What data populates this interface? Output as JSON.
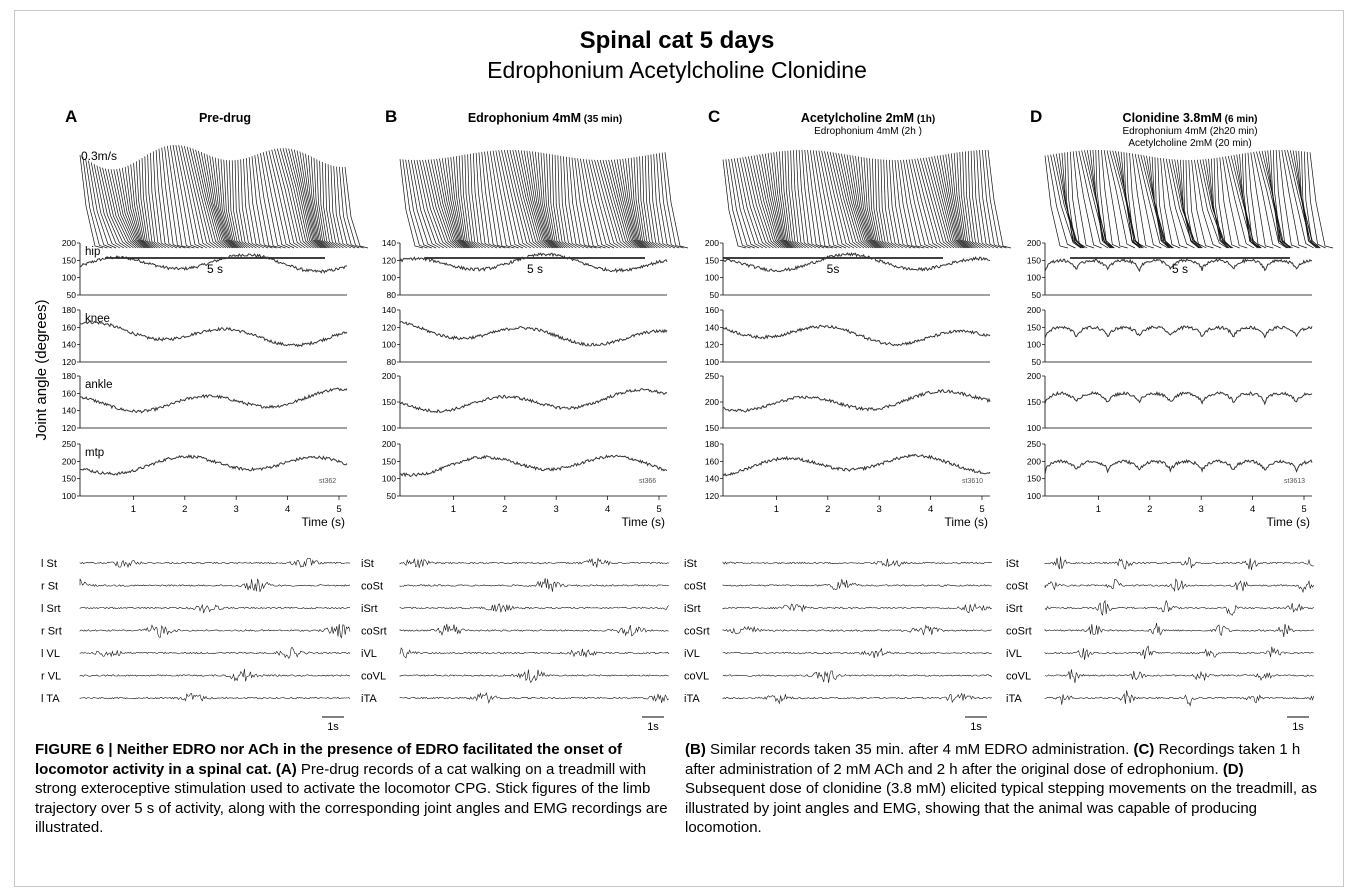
{
  "figure": {
    "title": "Spinal cat 5 days",
    "subtitle": "Edrophonium Acetylcholine Clonidine",
    "y_axis_label": "Joint angle (degrees)",
    "panels": [
      {
        "letter": "A",
        "title": "Pre-drug",
        "title_suffix": "",
        "subnotes": [],
        "speed_label": "0.3m/s",
        "stick_duration_label": "5 s",
        "record_id": "st362",
        "channels": [
          "l St",
          "r St",
          "l Srt",
          "r Srt",
          "l VL",
          "r VL",
          "l TA"
        ]
      },
      {
        "letter": "B",
        "title": "Edrophonium 4mM",
        "title_suffix": " (35 min)",
        "subnotes": [],
        "speed_label": "",
        "stick_duration_label": "5 s",
        "record_id": "st366",
        "channels": [
          "iSt",
          "coSt",
          "iSrt",
          "coSrt",
          "iVL",
          "coVL",
          "iTA"
        ]
      },
      {
        "letter": "C",
        "title": "Acetylcholine 2mM",
        "title_suffix": " (1h)",
        "subnotes": [
          "Edrophonium 4mM (2h )"
        ],
        "speed_label": "",
        "stick_duration_label": "5s",
        "record_id": "st3610",
        "channels": [
          "iSt",
          "coSt",
          "iSrt",
          "coSrt",
          "iVL",
          "coVL",
          "iTA"
        ]
      },
      {
        "letter": "D",
        "title": "Clonidine 3.8mM",
        "title_suffix": " (6 min)",
        "subnotes": [
          "Edrophonium 4mM (2h20 min)",
          "Acetylcholine  2mM (20 min)"
        ],
        "speed_label": "",
        "stick_duration_label": "5 s",
        "record_id": "st3613",
        "channels": [
          "iSt",
          "coSt",
          "iSrt",
          "coSrt",
          "iVL",
          "coVL",
          "iTA"
        ]
      }
    ],
    "joint_plots": [
      {
        "joint_labels": [
          "hip",
          "knee",
          "ankle",
          "mtp"
        ],
        "y_ticks": [
          [
            "200",
            "150",
            "100",
            "50"
          ],
          [
            "180",
            "160",
            "140",
            "120"
          ],
          [
            "180",
            "160",
            "140",
            "120"
          ],
          [
            "250",
            "200",
            "150",
            "100"
          ]
        ]
      },
      {
        "joint_labels": [],
        "y_ticks": [
          [
            "140",
            "120",
            "100",
            "80"
          ],
          [
            "140",
            "120",
            "100",
            "80"
          ],
          [
            "200",
            "150",
            "100"
          ],
          [
            "200",
            "150",
            "100",
            "50"
          ]
        ]
      },
      {
        "joint_labels": [],
        "y_ticks": [
          [
            "200",
            "150",
            "100",
            "50"
          ],
          [
            "160",
            "140",
            "120",
            "100"
          ],
          [
            "250",
            "200",
            "150"
          ],
          [
            "180",
            "160",
            "140",
            "120"
          ]
        ]
      },
      {
        "joint_labels": [],
        "y_ticks": [
          [
            "200",
            "150",
            "100",
            "50"
          ],
          [
            "200",
            "150",
            "100",
            "50"
          ],
          [
            "200",
            "150",
            "100"
          ],
          [
            "250",
            "200",
            "150",
            "100"
          ]
        ]
      }
    ],
    "x_ticks": [
      "1",
      "2",
      "3",
      "4",
      "5"
    ],
    "x_label": "Time (s)",
    "scale_bar_label": "1s"
  },
  "caption": {
    "left": {
      "lead": "FIGURE 6 | Neither EDRO nor ACh in the presence of EDRO facilitated the onset of locomotor activity in a spinal cat.",
      "a_marker": "(A)",
      "a_text": " Pre-drug records of a cat walking on a treadmill with strong exteroceptive stimulation used to activate the locomotor CPG. Stick figures of the limb trajectory over 5 s of activity, along with the corresponding joint angles and EMG recordings are illustrated."
    },
    "right": {
      "b_marker": "(B)",
      "b_text": " Similar records taken 35 min. after 4 mM EDRO administration. ",
      "c_marker": "(C)",
      "c_text": " Recordings taken 1 h after administration of 2 mM ACh and 2 h after the original dose of edrophonium. ",
      "d_marker": "(D)",
      "d_text": " Subsequent dose of clonidine (3.8 mM) elicited typical stepping movements on the treadmill, as illustrated by joint angles and EMG, showing that the animal was capable of producing locomotion."
    }
  }
}
